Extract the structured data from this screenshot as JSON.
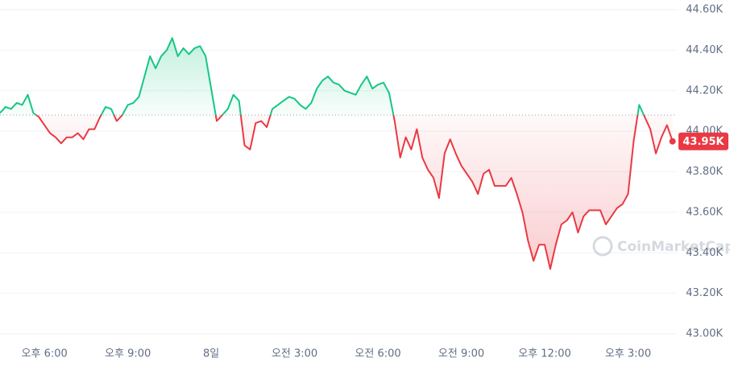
{
  "chart_data": {
    "type": "line",
    "x": [
      16.4,
      16.6,
      16.8,
      17.0,
      17.2,
      17.4,
      17.6,
      17.8,
      18.0,
      18.2,
      18.4,
      18.6,
      18.8,
      19.0,
      19.2,
      19.4,
      19.6,
      19.8,
      20.0,
      20.2,
      20.4,
      20.6,
      20.8,
      21.0,
      21.2,
      21.4,
      21.6,
      21.8,
      22.0,
      22.2,
      22.4,
      22.6,
      22.8,
      23.0,
      23.2,
      23.4,
      23.6,
      23.8,
      24.0,
      24.2,
      24.4,
      24.6,
      24.8,
      25.0,
      25.2,
      25.4,
      25.6,
      25.8,
      26.0,
      26.2,
      26.4,
      26.6,
      26.8,
      27.0,
      27.2,
      27.4,
      27.6,
      27.8,
      28.0,
      28.2,
      28.4,
      28.6,
      28.8,
      29.0,
      29.2,
      29.4,
      29.6,
      29.8,
      30.0,
      30.2,
      30.4,
      30.6,
      30.8,
      31.0,
      31.2,
      31.4,
      31.6,
      31.8,
      32.0,
      32.2,
      32.4,
      32.6,
      32.8,
      33.0,
      33.2,
      33.4,
      33.6,
      33.8,
      34.0,
      34.2,
      34.4,
      34.6,
      34.8,
      35.0,
      35.2,
      35.4,
      35.6,
      35.8,
      36.0,
      36.2,
      36.4,
      36.6,
      36.8,
      37.0,
      37.2,
      37.4,
      37.6,
      37.8,
      38.0,
      38.2,
      38.4,
      38.6,
      38.8,
      39.0,
      39.2,
      39.4,
      39.6,
      39.8,
      40.0,
      40.2,
      40.4,
      40.6
    ],
    "values": [
      44090,
      44120,
      44110,
      44140,
      44130,
      44180,
      44090,
      44070,
      44030,
      43990,
      43970,
      43940,
      43970,
      43970,
      43990,
      43960,
      44010,
      44010,
      44070,
      44120,
      44110,
      44050,
      44080,
      44130,
      44140,
      44170,
      44270,
      44370,
      44310,
      44370,
      44400,
      44460,
      44370,
      44410,
      44380,
      44410,
      44420,
      44370,
      44210,
      44050,
      44080,
      44110,
      44180,
      44150,
      43930,
      43910,
      44040,
      44050,
      44020,
      44110,
      44130,
      44150,
      44170,
      44160,
      44130,
      44110,
      44140,
      44210,
      44250,
      44270,
      44240,
      44230,
      44200,
      44190,
      44180,
      44230,
      44270,
      44210,
      44230,
      44240,
      44190,
      44050,
      43870,
      43970,
      43910,
      44010,
      43870,
      43810,
      43770,
      43670,
      43890,
      43960,
      43890,
      43830,
      43790,
      43750,
      43690,
      43790,
      43810,
      43730,
      43730,
      43730,
      43770,
      43690,
      43600,
      43460,
      43360,
      43440,
      43440,
      43320,
      43440,
      43540,
      43560,
      43600,
      43500,
      43580,
      43610,
      43610,
      43610,
      43540,
      43580,
      43620,
      43640,
      43690,
      43950,
      44130,
      44070,
      44010,
      43890,
      43970,
      44030,
      43950
    ],
    "baseline": 44080,
    "last_price": {
      "value": 43950,
      "label": "43.95K"
    },
    "up_color": "#16c784",
    "down_color": "#ea3943",
    "xlim": [
      16.4,
      40.9
    ],
    "xticks": [
      {
        "value": 18,
        "label": "오후 6:00"
      },
      {
        "value": 21,
        "label": "오후 9:00"
      },
      {
        "value": 24,
        "label": "8일"
      },
      {
        "value": 27,
        "label": "오전 3:00"
      },
      {
        "value": 30,
        "label": "오전 6:00"
      },
      {
        "value": 33,
        "label": "오전 9:00"
      },
      {
        "value": 36,
        "label": "오후 12:00"
      },
      {
        "value": 39,
        "label": "오후 3:00"
      }
    ],
    "ylim": [
      43000,
      44600
    ],
    "yticks": [
      {
        "value": 43000,
        "label": "43.00K"
      },
      {
        "value": 43200,
        "label": "43.20K"
      },
      {
        "value": 43400,
        "label": "43.40K"
      },
      {
        "value": 43600,
        "label": "43.60K"
      },
      {
        "value": 43800,
        "label": "43.80K"
      },
      {
        "value": 44000,
        "label": "44.00K"
      },
      {
        "value": 44200,
        "label": "44.20K"
      },
      {
        "value": 44400,
        "label": "44.40K"
      },
      {
        "value": 44600,
        "label": "44.60K"
      }
    ],
    "grid": true,
    "watermark": "CoinMarketCap"
  }
}
